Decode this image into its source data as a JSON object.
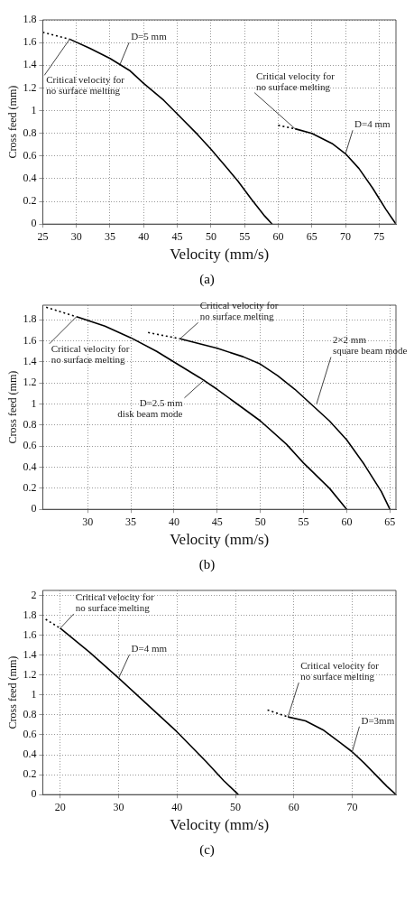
{
  "chart_data": [
    {
      "type": "line",
      "xlabel": "Velocity (mm/s)",
      "ylabel": "Cross feed (mm)",
      "xlim": [
        25,
        77.5
      ],
      "xticks": [
        25,
        30,
        35,
        40,
        45,
        50,
        55,
        60,
        65,
        70,
        75
      ],
      "ylim": [
        0,
        1.8
      ],
      "yticks": [
        0,
        0.2,
        0.4,
        0.6,
        0.8,
        1,
        1.2,
        1.4,
        1.6,
        1.8
      ],
      "grid": true,
      "marker": "none",
      "series": [
        {
          "color": "#000000",
          "line_style": "dotted",
          "x": [
            25,
            29
          ],
          "values": [
            1.69,
            1.63
          ]
        },
        {
          "color": "#000000",
          "line_style": "solid",
          "x": [
            29,
            32,
            35,
            38,
            40,
            43,
            45,
            48,
            50,
            52,
            54,
            56,
            58,
            59.1
          ],
          "values": [
            1.63,
            1.55,
            1.46,
            1.35,
            1.24,
            1.09,
            0.97,
            0.79,
            0.66,
            0.52,
            0.38,
            0.22,
            0.07,
            0
          ]
        },
        {
          "color": "#000000",
          "line_style": "dotted",
          "x": [
            60,
            62.5
          ],
          "values": [
            0.87,
            0.84
          ]
        },
        {
          "color": "#000000",
          "line_style": "solid",
          "x": [
            62.5,
            65,
            68,
            70,
            72,
            74,
            76,
            77.5
          ],
          "values": [
            0.84,
            0.8,
            0.71,
            0.62,
            0.49,
            0.32,
            0.13,
            0
          ]
        }
      ],
      "annotations": [
        {
          "text": "D=5 mm",
          "x": 36.5,
          "y": 1.41
        },
        {
          "text": "Critical velocity for\nno surface melting",
          "x": 29,
          "y": 1.63
        },
        {
          "text": "Critical velocity for\nno surface melting",
          "x": 62.5,
          "y": 0.84
        },
        {
          "text": "D=4 mm",
          "x": 70,
          "y": 0.62
        },
        "(a)"
      ]
    },
    {
      "type": "line",
      "xlabel": "Velocity (mm/s)",
      "ylabel": "Cross feed (mm)",
      "xlim": [
        24.8,
        65.7
      ],
      "xticks": [
        30,
        35,
        40,
        45,
        50,
        55,
        60,
        65
      ],
      "ylim": [
        0,
        1.94
      ],
      "yticks": [
        0,
        0.2,
        0.4,
        0.6,
        0.8,
        1,
        1.2,
        1.4,
        1.6,
        1.8
      ],
      "grid": true,
      "marker": "none",
      "series": [
        {
          "color": "#000000",
          "line_style": "dotted",
          "x": [
            25.2,
            28.7
          ],
          "values": [
            1.92,
            1.83
          ]
        },
        {
          "color": "#000000",
          "line_style": "solid",
          "x": [
            28.7,
            32,
            35,
            38,
            40,
            43,
            45,
            48,
            50,
            53,
            55,
            58,
            60
          ],
          "values": [
            1.83,
            1.74,
            1.63,
            1.5,
            1.4,
            1.25,
            1.14,
            0.96,
            0.84,
            0.62,
            0.44,
            0.2,
            0
          ]
        },
        {
          "color": "#000000",
          "line_style": "dotted",
          "x": [
            37,
            40.7
          ],
          "values": [
            1.68,
            1.62
          ]
        },
        {
          "color": "#000000",
          "line_style": "solid",
          "x": [
            40.7,
            45,
            48,
            50,
            52,
            54,
            56,
            58,
            60,
            62,
            64,
            65
          ],
          "values": [
            1.62,
            1.53,
            1.45,
            1.38,
            1.27,
            1.14,
            0.99,
            0.84,
            0.66,
            0.43,
            0.17,
            0
          ]
        }
      ],
      "annotations": [
        {
          "text": "Critical velocity for\nno surface melting",
          "x": 28.7,
          "y": 1.83
        },
        {
          "text": "Critical velocity for\nno surface melting",
          "x": 40.7,
          "y": 1.62
        },
        {
          "text": "D=2.5 mm\ndisk beam mode",
          "x": 43.5,
          "y": 1.23
        },
        {
          "text": "2×2 mm\nsquare beam mode",
          "x": 56.5,
          "y": 1.0
        },
        "(b)"
      ]
    },
    {
      "type": "line",
      "xlabel": "Velocity (mm/s)",
      "ylabel": "Cross feed (mm)",
      "xlim": [
        17,
        77.5
      ],
      "xticks": [
        20,
        30,
        40,
        50,
        60,
        70
      ],
      "ylim": [
        0,
        2.05
      ],
      "yticks": [
        0,
        0.2,
        0.4,
        0.6,
        0.8,
        1,
        1.2,
        1.4,
        1.6,
        1.8,
        2
      ],
      "grid": true,
      "marker": "none",
      "series": [
        {
          "color": "#000000",
          "line_style": "dotted",
          "x": [
            17.5,
            20
          ],
          "values": [
            1.76,
            1.67
          ]
        },
        {
          "color": "#000000",
          "line_style": "solid",
          "x": [
            20,
            25,
            30,
            35,
            40,
            45,
            48,
            50.5
          ],
          "values": [
            1.67,
            1.43,
            1.17,
            0.9,
            0.63,
            0.33,
            0.14,
            0
          ]
        },
        {
          "color": "#000000",
          "line_style": "dotted",
          "x": [
            55.5,
            59
          ],
          "values": [
            0.85,
            0.78
          ]
        },
        {
          "color": "#000000",
          "line_style": "solid",
          "x": [
            59,
            62,
            65,
            68,
            70,
            72,
            74,
            76,
            77.5
          ],
          "values": [
            0.78,
            0.74,
            0.65,
            0.52,
            0.43,
            0.32,
            0.2,
            0.08,
            0
          ]
        }
      ],
      "annotations": [
        {
          "text": "Critical velocity for\nno surface melting",
          "x": 20,
          "y": 1.67
        },
        {
          "text": "D=4 mm",
          "x": 30,
          "y": 1.17
        },
        {
          "text": "Critical velocity for\nno surface melting",
          "x": 59,
          "y": 0.78
        },
        {
          "text": "D=3mm",
          "x": 70,
          "y": 0.43
        },
        "(c)"
      ]
    }
  ]
}
